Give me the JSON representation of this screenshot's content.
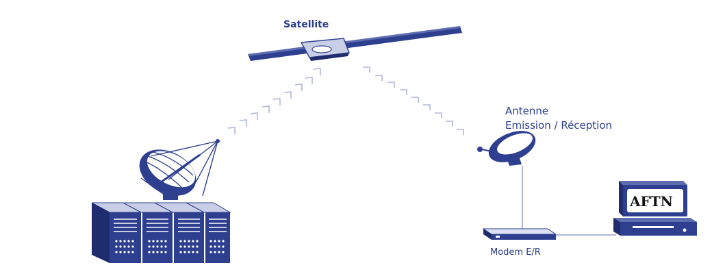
{
  "labels": {
    "satellite": "Satellite",
    "antenna_line1": "Antenne",
    "antenna_line2": "Emission / Réception",
    "modem": "Modem E/R",
    "terminal_screen": "AFTN"
  },
  "colors": {
    "navy": "#2e3f8f",
    "dark_navy": "#1f2d6e",
    "light_blue": "#aeb7d9",
    "pale_blue": "#dde2f2",
    "text": "#2b3d8c"
  },
  "icons": [
    "satellite-icon",
    "ground-dish-icon",
    "server-rack-icon",
    "antenna-dish-icon",
    "modem-icon",
    "computer-terminal-icon"
  ]
}
